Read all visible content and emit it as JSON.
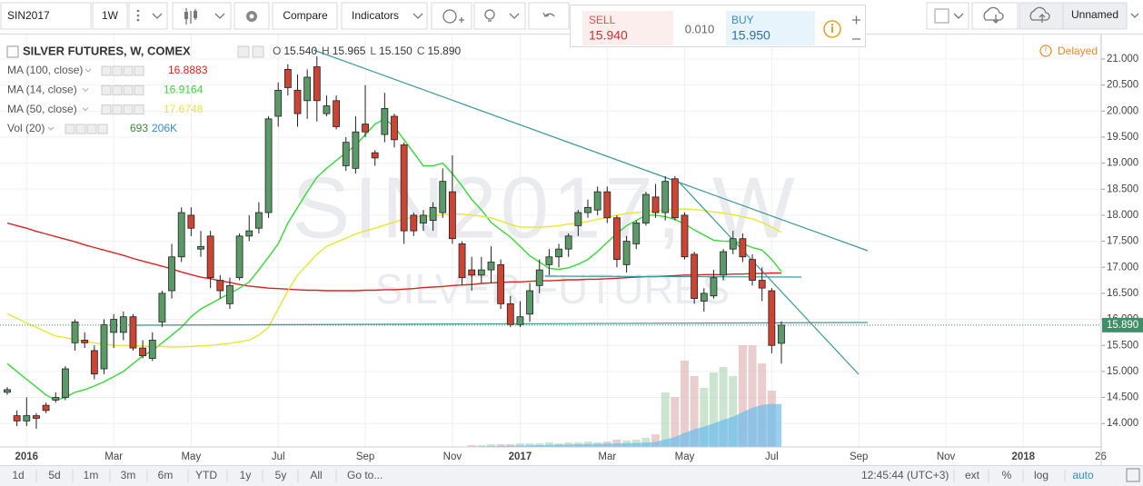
{
  "toolbar": {
    "symbol": "SIN2017",
    "interval": "1W",
    "compare": "Compare",
    "indicators": "Indicators",
    "layout_name": "Unnamed"
  },
  "trade": {
    "sell_label": "SELL",
    "sell_price": "15.940",
    "spread": "0.010",
    "buy_label": "BUY",
    "buy_price": "15.950"
  },
  "status": {
    "delayed": "Delayed"
  },
  "bottom_bar": {
    "ranges": [
      "1d",
      "5d",
      "1m",
      "3m",
      "6m",
      "YTD",
      "1y",
      "5y",
      "All"
    ],
    "goto": "Go to...",
    "clock": "12:45:44 (UTC+3)",
    "options": [
      "ext",
      "%",
      "log",
      "auto"
    ]
  },
  "chart_data": {
    "type": "candlestick",
    "title": "SILVER FUTURES, W, COMEX",
    "watermark": {
      "symbol": "SIN2017, W",
      "description": "SILVER FUTURES"
    },
    "ohlc_header": [
      {
        "key": "O",
        "label": "15.540"
      },
      {
        "key": "H",
        "label": "15.965"
      },
      {
        "key": "L",
        "label": "15.150"
      },
      {
        "key": "C",
        "label": "15.890"
      }
    ],
    "up_color": "#5b9a68",
    "down_color": "#cc4434",
    "wick_color": "#222222",
    "categories": [
      null,
      null,
      "2016",
      null,
      null,
      null,
      null,
      null,
      null,
      null,
      null,
      "Mar",
      null,
      null,
      null,
      null,
      null,
      null,
      null,
      "May",
      null,
      null,
      null,
      null,
      null,
      null,
      null,
      null,
      "Jul",
      null,
      null,
      null,
      null,
      null,
      null,
      null,
      null,
      "Sep",
      null,
      null,
      null,
      null,
      null,
      null,
      null,
      null,
      "Nov",
      null,
      null,
      null,
      null,
      null,
      null,
      "2017",
      null,
      null,
      null,
      null,
      null,
      null,
      null,
      null,
      "Mar",
      null,
      null,
      null,
      null,
      null,
      null,
      null,
      "May",
      null,
      null,
      null,
      null,
      null,
      null,
      null,
      null,
      "Jul",
      null,
      null,
      null,
      null,
      null,
      null,
      null,
      null,
      "Sep",
      null,
      null,
      null,
      null,
      null,
      null,
      null,
      null,
      "Nov",
      null,
      null,
      null,
      null,
      null,
      null,
      null,
      "2018",
      null,
      null,
      null,
      null,
      null,
      null,
      null,
      "26"
    ],
    "open": [
      14.6,
      14.15,
      14.05,
      14.15,
      14.35,
      14.45,
      14.5,
      15.55,
      15.6,
      15.4,
      15.05,
      15.75,
      15.75,
      16.05,
      15.45,
      15.25,
      15.95,
      16.55,
      17.2,
      18.0,
      17.35,
      17.6,
      16.75,
      16.3,
      16.8,
      17.6,
      17.75,
      18.05,
      19.9,
      20.8,
      20.4,
      20.2,
      20.85,
      19.95,
      20.2,
      18.95,
      18.9,
      19.75,
      19.2,
      19.55,
      19.9,
      19.35,
      18.0,
      17.85,
      17.9,
      18.05,
      18.45,
      17.45,
      16.95,
      16.85,
      16.95,
      17.05,
      16.3,
      15.9,
      16.1,
      16.65,
      17.05,
      17.2,
      17.35,
      17.8,
      18.05,
      18.1,
      18.45,
      17.95,
      17.05,
      17.45,
      17.85,
      18.35,
      18.05,
      18.7,
      18.0,
      17.25,
      16.35,
      16.45,
      16.85,
      17.35,
      17.55,
      17.15,
      16.75,
      16.55,
      15.54,
      null,
      null,
      null,
      null,
      null,
      null,
      null,
      null,
      null,
      null,
      null,
      null,
      null,
      null,
      null,
      null,
      null,
      null,
      null,
      null,
      null,
      null,
      null,
      null,
      null,
      null,
      null,
      null,
      null,
      null,
      null,
      null,
      null
    ],
    "high": [
      14.7,
      14.25,
      14.5,
      14.2,
      14.4,
      14.6,
      15.1,
      16.0,
      15.75,
      15.5,
      16.0,
      16.1,
      16.15,
      16.1,
      15.6,
      15.75,
      16.55,
      17.45,
      18.15,
      18.15,
      17.7,
      17.7,
      16.85,
      16.8,
      17.65,
      18.0,
      18.25,
      19.9,
      20.55,
      20.9,
      20.7,
      20.8,
      21.05,
      20.3,
      20.3,
      19.5,
      19.9,
      20.5,
      19.25,
      20.35,
      19.95,
      19.4,
      18.05,
      18.1,
      18.25,
      18.9,
      19.15,
      17.5,
      17.2,
      17.2,
      17.4,
      17.15,
      16.45,
      16.35,
      16.7,
      17.15,
      17.35,
      17.45,
      17.65,
      18.1,
      18.3,
      18.55,
      18.55,
      18.0,
      17.6,
      17.9,
      18.45,
      18.6,
      18.75,
      18.75,
      18.05,
      17.3,
      16.6,
      16.95,
      17.35,
      17.7,
      17.65,
      17.25,
      17.0,
      16.6,
      15.965,
      null,
      null,
      null,
      null,
      null,
      null,
      null,
      null,
      null,
      null,
      null,
      null,
      null,
      null,
      null,
      null,
      null,
      null,
      null,
      null,
      null,
      null,
      null,
      null,
      null,
      null,
      null,
      null,
      null,
      null,
      null,
      null,
      null
    ],
    "low": [
      14.55,
      13.95,
      13.95,
      13.9,
      14.2,
      14.4,
      14.45,
      15.4,
      15.45,
      14.85,
      14.95,
      15.45,
      15.6,
      15.4,
      15.25,
      15.2,
      15.85,
      16.4,
      17.1,
      17.6,
      17.2,
      16.6,
      16.4,
      16.2,
      16.75,
      17.5,
      17.65,
      17.95,
      19.7,
      20.3,
      19.7,
      19.85,
      19.8,
      19.9,
      19.65,
      18.85,
      18.8,
      19.5,
      18.95,
      19.4,
      19.3,
      17.45,
      17.6,
      17.7,
      17.7,
      17.95,
      17.45,
      16.65,
      16.55,
      16.7,
      16.7,
      16.2,
      15.85,
      15.85,
      15.95,
      16.5,
      16.85,
      17.0,
      17.2,
      17.6,
      17.95,
      18.0,
      17.85,
      17.0,
      16.9,
      17.35,
      17.8,
      17.95,
      17.9,
      17.9,
      17.15,
      16.3,
      16.15,
      16.4,
      16.75,
      17.25,
      17.1,
      16.65,
      16.35,
      15.35,
      15.15,
      null,
      null,
      null,
      null,
      null,
      null,
      null,
      null,
      null,
      null,
      null,
      null,
      null,
      null,
      null,
      null,
      null,
      null,
      null,
      null,
      null,
      null,
      null,
      null,
      null,
      null,
      null,
      null,
      null,
      null,
      null,
      null,
      null
    ],
    "close": [
      14.65,
      14.05,
      14.15,
      14.1,
      14.25,
      14.5,
      15.05,
      15.95,
      15.55,
      14.95,
      15.9,
      16.0,
      16.05,
      15.45,
      15.3,
      15.6,
      16.5,
      17.2,
      18.05,
      17.75,
      17.4,
      16.8,
      16.55,
      16.65,
      17.6,
      17.7,
      18.05,
      19.85,
      20.4,
      20.45,
      19.95,
      20.65,
      20.2,
      20.1,
      19.7,
      19.4,
      19.6,
      19.6,
      19.1,
      20.05,
      19.45,
      17.7,
      17.7,
      18.0,
      18.15,
      18.65,
      17.55,
      16.8,
      16.85,
      16.95,
      17.1,
      16.3,
      15.9,
      16.05,
      16.55,
      16.95,
      17.2,
      17.35,
      17.6,
      18.05,
      18.15,
      18.45,
      17.95,
      17.15,
      17.5,
      17.85,
      18.4,
      18.05,
      18.65,
      17.95,
      17.2,
      16.4,
      16.5,
      16.8,
      17.3,
      17.55,
      17.2,
      16.75,
      16.6,
      15.5,
      15.89,
      null,
      null,
      null,
      null,
      null,
      null,
      null,
      null,
      null,
      null,
      null,
      null,
      null,
      null,
      null,
      null,
      null,
      null,
      null,
      null,
      null,
      null,
      null,
      null,
      null,
      null,
      null,
      null,
      null,
      null,
      null,
      null,
      null
    ],
    "series": [
      {
        "name": "MA (100, close)",
        "color": "#dd2222",
        "values": [
          17.85,
          17.8,
          17.75,
          17.69,
          17.64,
          17.59,
          17.54,
          17.49,
          17.43,
          17.38,
          17.33,
          17.28,
          17.23,
          17.17,
          17.12,
          17.07,
          17.02,
          16.97,
          16.91,
          16.86,
          16.81,
          16.78,
          16.74,
          16.71,
          16.67,
          16.64,
          16.62,
          16.6,
          16.59,
          16.58,
          16.57,
          16.56,
          16.56,
          16.55,
          16.55,
          16.55,
          16.55,
          16.56,
          16.56,
          16.57,
          16.57,
          16.58,
          16.59,
          16.61,
          16.62,
          16.63,
          16.65,
          16.66,
          16.67,
          16.69,
          16.7,
          16.71,
          16.72,
          16.72,
          16.73,
          16.74,
          16.74,
          16.75,
          16.76,
          16.76,
          16.77,
          16.77,
          16.78,
          16.79,
          16.8,
          16.81,
          16.82,
          16.82,
          16.83,
          16.84,
          16.85,
          16.85,
          16.86,
          16.86,
          16.86,
          16.87,
          16.87,
          16.88,
          16.88,
          16.89,
          16.8883,
          null,
          null,
          null,
          null,
          null,
          null,
          null,
          null,
          null,
          null,
          null,
          null,
          null,
          null,
          null,
          null,
          null,
          null,
          null,
          null,
          null,
          null,
          null,
          null,
          null,
          null,
          null,
          null,
          null,
          null,
          null,
          null,
          null
        ]
      },
      {
        "name": "MA (14, close)",
        "color": "#33dd33",
        "values": [
          15.15,
          15.0,
          14.85,
          14.7,
          14.55,
          14.45,
          14.5,
          14.6,
          14.65,
          14.72,
          14.8,
          14.9,
          15.0,
          15.15,
          15.3,
          15.4,
          15.55,
          15.7,
          15.85,
          16.05,
          16.2,
          16.3,
          16.4,
          16.5,
          16.6,
          16.72,
          16.95,
          17.2,
          17.45,
          17.85,
          18.15,
          18.45,
          18.73,
          18.9,
          19.05,
          19.2,
          19.34,
          19.55,
          19.75,
          19.85,
          19.7,
          19.45,
          19.2,
          18.95,
          18.95,
          19.0,
          18.8,
          18.56,
          18.3,
          18.1,
          17.86,
          17.72,
          17.58,
          17.4,
          17.22,
          17.1,
          16.98,
          16.96,
          16.99,
          17.06,
          17.15,
          17.3,
          17.48,
          17.65,
          17.8,
          17.9,
          18.0,
          18.0,
          17.97,
          17.92,
          17.83,
          17.72,
          17.62,
          17.52,
          17.5,
          17.5,
          17.45,
          17.38,
          17.33,
          17.15,
          16.9164,
          null,
          null,
          null,
          null,
          null,
          null,
          null,
          null,
          null,
          null,
          null,
          null,
          null,
          null,
          null,
          null,
          null,
          null,
          null,
          null,
          null,
          null,
          null,
          null,
          null,
          null,
          null,
          null,
          null,
          null,
          null,
          null,
          null
        ]
      },
      {
        "name": "MA (50, close)",
        "color": "#e8e830",
        "values": [
          16.11,
          16.02,
          15.93,
          15.85,
          15.76,
          15.68,
          15.65,
          15.61,
          15.58,
          15.55,
          15.52,
          15.5,
          15.5,
          15.49,
          15.49,
          15.48,
          15.48,
          15.47,
          15.47,
          15.48,
          15.49,
          15.5,
          15.52,
          15.54,
          15.57,
          15.6,
          15.7,
          15.85,
          16.2,
          16.55,
          16.85,
          17.05,
          17.25,
          17.4,
          17.48,
          17.56,
          17.64,
          17.7,
          17.75,
          17.81,
          17.87,
          17.93,
          17.96,
          17.98,
          17.99,
          18.01,
          18.03,
          18.02,
          18.0,
          17.98,
          17.95,
          17.89,
          17.82,
          17.77,
          17.77,
          17.77,
          17.78,
          17.8,
          17.83,
          17.85,
          17.88,
          17.92,
          17.96,
          18.0,
          18.03,
          18.05,
          18.07,
          18.09,
          18.1,
          18.11,
          18.12,
          18.11,
          18.09,
          18.06,
          18.04,
          18.01,
          17.97,
          17.93,
          17.86,
          17.77,
          17.6748,
          null,
          null,
          null,
          null,
          null,
          null,
          null,
          null,
          null,
          null,
          null,
          null,
          null,
          null,
          null,
          null,
          null,
          null,
          null,
          null,
          null,
          null,
          null,
          null,
          null,
          null,
          null,
          null,
          null,
          null,
          null,
          null,
          null
        ]
      }
    ],
    "volume": {
      "name": "Vol (20)",
      "up_color": "#b9dcc0",
      "down_color": "#e6bcbc",
      "values": [
        null,
        null,
        null,
        null,
        null,
        null,
        null,
        null,
        null,
        null,
        null,
        null,
        null,
        null,
        null,
        null,
        null,
        null,
        null,
        null,
        null,
        null,
        null,
        null,
        null,
        null,
        null,
        null,
        null,
        null,
        null,
        null,
        null,
        null,
        null,
        null,
        null,
        null,
        null,
        null,
        null,
        null,
        null,
        null,
        null,
        null,
        null,
        null,
        9000,
        9000,
        13000,
        13000,
        13000,
        17000,
        17000,
        17000,
        22000,
        17000,
        22000,
        22000,
        26000,
        22000,
        26000,
        35000,
        31000,
        35000,
        44000,
        61000,
        263000,
        241000,
        416000,
        342000,
        285000,
        359000,
        386000,
        342000,
        491000,
        491000,
        403000,
        272000,
        693,
        null,
        null,
        null,
        null,
        null,
        null,
        null,
        null,
        null,
        null,
        null,
        null,
        null,
        null,
        null,
        null,
        null,
        null,
        null,
        null,
        null,
        null,
        null,
        null,
        null,
        null,
        null,
        null,
        null,
        null,
        null,
        null,
        null
      ]
    },
    "volume_ma": {
      "color": "#6cbcec",
      "last_label": "206K",
      "values": [
        null,
        null,
        null,
        null,
        null,
        null,
        null,
        null,
        null,
        null,
        null,
        null,
        null,
        null,
        null,
        null,
        null,
        null,
        null,
        null,
        null,
        null,
        null,
        null,
        null,
        null,
        null,
        null,
        null,
        null,
        null,
        null,
        null,
        null,
        null,
        null,
        null,
        null,
        null,
        null,
        null,
        null,
        null,
        null,
        null,
        null,
        null,
        null,
        2000,
        3000,
        4000,
        5000,
        6000,
        7000,
        8000,
        9000,
        10000,
        11000,
        12000,
        13000,
        14000,
        15000,
        16000,
        17000,
        18000,
        19000,
        21000,
        24000,
        36000,
        48000,
        68000,
        85000,
        98000,
        114000,
        131000,
        146000,
        168000,
        189000,
        203000,
        208000,
        206000,
        null,
        null,
        null,
        null,
        null,
        null,
        null,
        null,
        null,
        null,
        null,
        null,
        null,
        null,
        null,
        null,
        null,
        null,
        null,
        null,
        null,
        null,
        null,
        null,
        null,
        null,
        null,
        null,
        null,
        null,
        null,
        null,
        null
      ]
    },
    "last_price": {
      "value": 15.89,
      "label": "15.890",
      "color": "#3f8f68"
    },
    "ylim": [
      13.55,
      21.47
    ],
    "yticks": [
      {
        "value": 14,
        "label": "14.000"
      },
      {
        "value": 14.5,
        "label": "14.500"
      },
      {
        "value": 15,
        "label": "15.000"
      },
      {
        "value": 15.5,
        "label": "15.500"
      },
      {
        "value": 16,
        "label": "16.000"
      },
      {
        "value": 16.5,
        "label": "16.500"
      },
      {
        "value": 17,
        "label": "17.000"
      },
      {
        "value": 17.5,
        "label": "17.500"
      },
      {
        "value": 18,
        "label": "18.000"
      },
      {
        "value": 18.5,
        "label": "18.500"
      },
      {
        "value": 19,
        "label": "19.000"
      },
      {
        "value": 19.5,
        "label": "19.500"
      },
      {
        "value": 20,
        "label": "20.000"
      },
      {
        "value": 20.5,
        "label": "20.500"
      },
      {
        "value": 21,
        "label": "21.000"
      }
    ],
    "grid": true
  }
}
